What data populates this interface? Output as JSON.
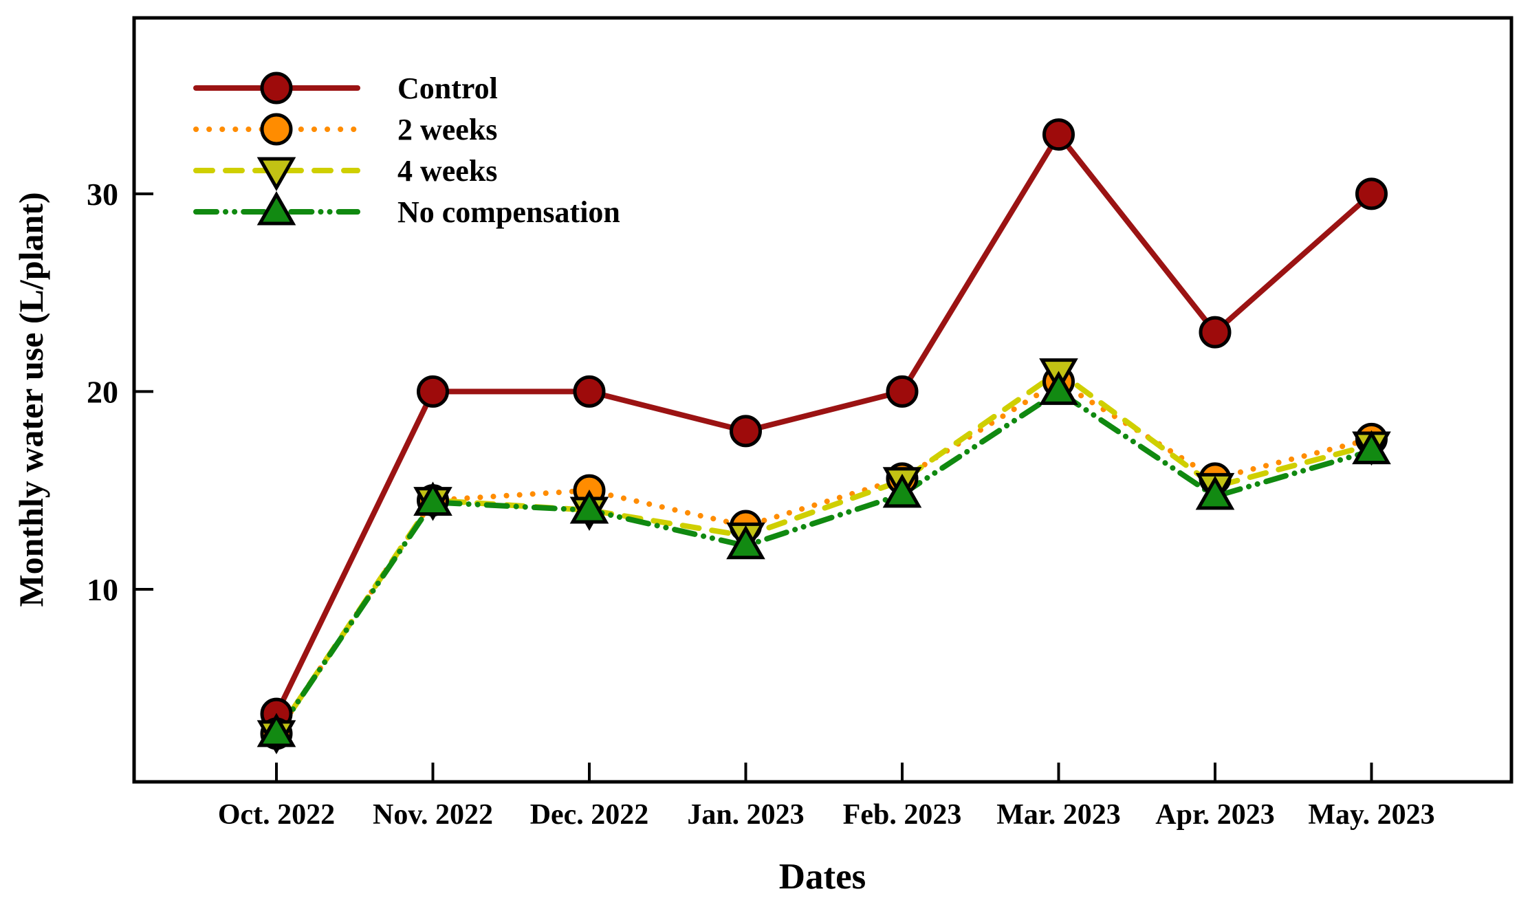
{
  "figure": {
    "background": "#ffffff",
    "frame_color": "#000000"
  },
  "chart_data": {
    "type": "line",
    "title": "",
    "xlabel": "Dates",
    "ylabel": "Monthly water use (L/plant)",
    "categories": [
      "Oct. 2022",
      "Nov. 2022",
      "Dec. 2022",
      "Jan. 2023",
      "Feb. 2023",
      "Mar. 2023",
      "Apr. 2023",
      "May. 2023"
    ],
    "yticks": [
      10,
      20,
      30
    ],
    "ylim": [
      0.26,
      38.9
    ],
    "grid": false,
    "legend_position": "top-left-inside",
    "series": [
      {
        "name": "Control",
        "line_color": "#9B1313",
        "marker_fill": "#9E0B0B",
        "line_style": "solid",
        "marker": "circle",
        "values": [
          3.7,
          20,
          20,
          18,
          20,
          33,
          23,
          30
        ]
      },
      {
        "name": "2 weeks",
        "line_color": "#FF8C00",
        "marker_fill": "#FF8C00",
        "line_style": "dotted",
        "marker": "circle",
        "values": [
          2.7,
          14.5,
          15,
          13.2,
          15.6,
          20.5,
          15.6,
          17.6
        ]
      },
      {
        "name": "4 weeks",
        "line_color": "#CFCF00",
        "marker_fill": "#C2C214",
        "line_style": "dashed",
        "marker": "triangle-down",
        "values": [
          2.7,
          14.5,
          14,
          12.7,
          15.5,
          21,
          15.2,
          17.3
        ]
      },
      {
        "name": "No compensation",
        "line_color": "#108910",
        "marker_fill": "#128A12",
        "line_style": "dash-dot-dot",
        "marker": "triangle-up",
        "values": [
          2.7,
          14.4,
          14,
          12.2,
          14.8,
          20,
          14.7,
          17
        ]
      }
    ]
  }
}
